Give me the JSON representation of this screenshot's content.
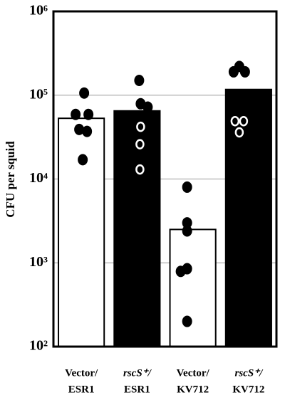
{
  "chart_data": {
    "type": "bar",
    "y_label": "CFU per squid",
    "categories": [
      [
        "Vector/",
        "ESR1"
      ],
      [
        "rscS⁺/",
        "ESR1"
      ],
      [
        "Vector/",
        "KV712"
      ],
      [
        "rscS⁺/",
        "KV712"
      ]
    ],
    "category_italic_first_line": [
      false,
      true,
      false,
      true
    ],
    "values": [
      53000,
      65000,
      2500,
      117000
    ],
    "bar_colors": [
      "#ffffff",
      "#000000",
      "#ffffff",
      "#000000"
    ],
    "points": [
      [
        106000,
        59000,
        59000,
        39000,
        37000,
        17000
      ],
      [
        150000,
        79000,
        72000,
        42000,
        26000,
        13000
      ],
      [
        8000,
        3000,
        2400,
        790,
        850,
        200
      ],
      [
        190000,
        220000,
        190000,
        49000,
        49000,
        36000
      ]
    ],
    "points_filled": [
      [
        true,
        true,
        true,
        true,
        true,
        true
      ],
      [
        true,
        true,
        true,
        false,
        false,
        false
      ],
      [
        true,
        true,
        true,
        true,
        true,
        true
      ],
      [
        true,
        true,
        true,
        false,
        false,
        false
      ]
    ],
    "log_y": true,
    "ylim": [
      100,
      1000000
    ],
    "yticks": [
      {
        "value": 100,
        "label": "10²"
      },
      {
        "value": 1000,
        "label": "10³"
      },
      {
        "value": 10000,
        "label": "10⁴"
      },
      {
        "value": 100000,
        "label": "10⁵"
      },
      {
        "value": 1000000,
        "label": "10⁶"
      }
    ],
    "grid": true
  }
}
